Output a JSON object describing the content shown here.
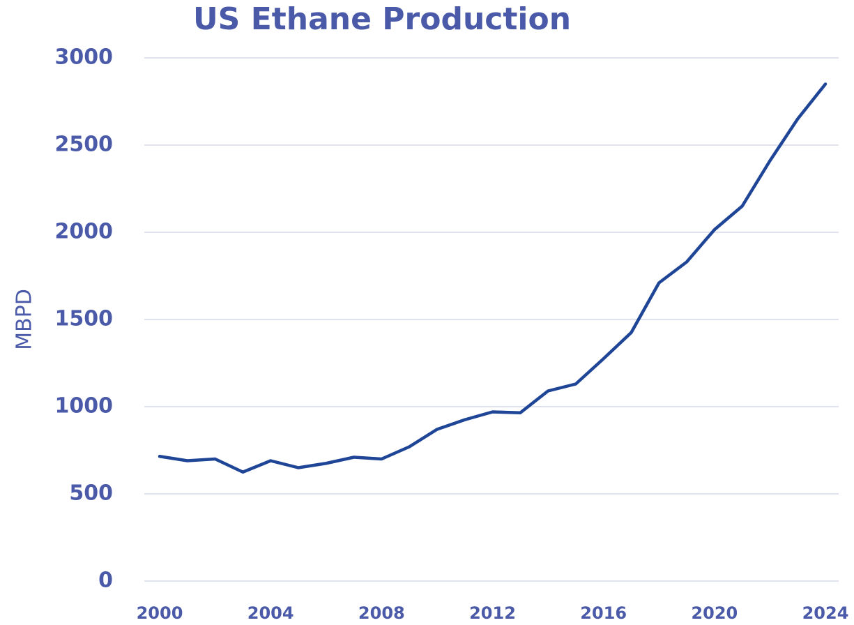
{
  "chart_data": {
    "type": "line",
    "title": "US Ethane Production",
    "y_label": "MBPD",
    "x": [
      2000,
      2001,
      2002,
      2003,
      2004,
      2005,
      2006,
      2007,
      2008,
      2009,
      2010,
      2011,
      2012,
      2013,
      2014,
      2015,
      2016,
      2017,
      2018,
      2019,
      2020,
      2021,
      2022,
      2023,
      2024
    ],
    "series": [
      {
        "name": "US Ethane Production",
        "color": "#1f4596",
        "values": [
          715,
          690,
          700,
          625,
          690,
          650,
          675,
          710,
          700,
          770,
          870,
          925,
          970,
          965,
          1090,
          1130,
          1275,
          1425,
          1710,
          1830,
          2015,
          2150,
          2410,
          2650,
          2850
        ]
      }
    ],
    "xlim": [
      2000,
      2024
    ],
    "xticks": [
      2000,
      2004,
      2008,
      2012,
      2016,
      2020,
      2024
    ],
    "ylim": [
      0,
      3000
    ],
    "yticks": [
      0,
      500,
      1000,
      1500,
      2000,
      2500,
      3000
    ],
    "grid": true
  }
}
